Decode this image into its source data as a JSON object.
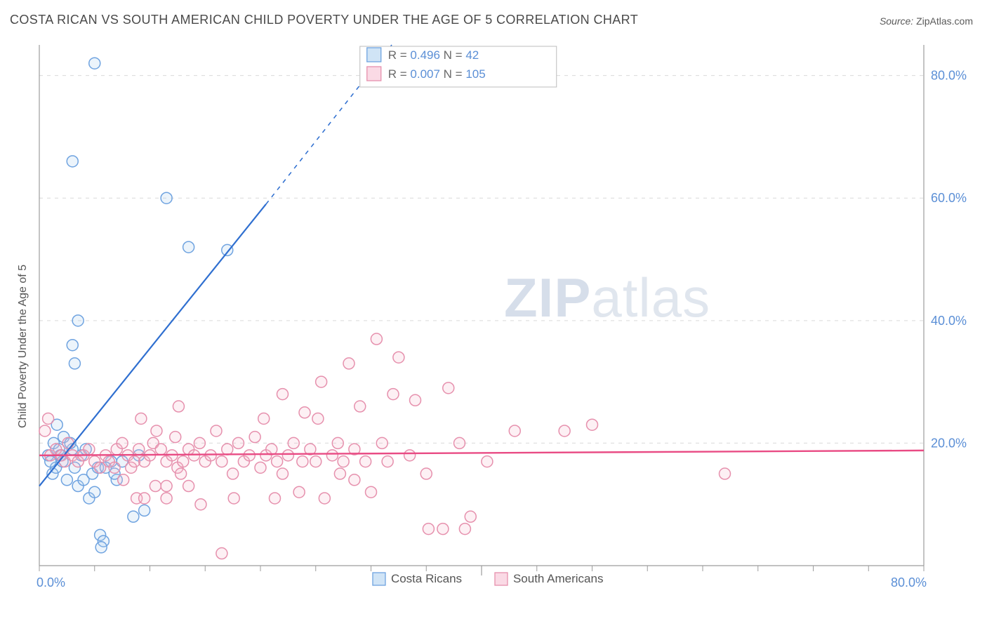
{
  "title": "COSTA RICAN VS SOUTH AMERICAN CHILD POVERTY UNDER THE AGE OF 5 CORRELATION CHART",
  "source_label": "Source:",
  "source_value": "ZipAtlas.com",
  "ylabel": "Child Poverty Under the Age of 5",
  "watermark_bold": "ZIP",
  "watermark_rest": "atlas",
  "chart": {
    "type": "scatter",
    "background_color": "#ffffff",
    "grid_color": "#d9d9d9",
    "axis_color": "#9c9c9c",
    "tick_color": "#9c9c9c",
    "ticklabel_color": "#5b8fd6",
    "xlim": [
      0,
      80
    ],
    "ylim": [
      0,
      85
    ],
    "xticks_major": [
      0,
      40,
      80
    ],
    "yticks_major": [
      20,
      40,
      60,
      80
    ],
    "xtick_labels": {
      "0": "0.0%",
      "80": "80.0%"
    },
    "ytick_labels": {
      "20": "20.0%",
      "40": "40.0%",
      "60": "60.0%",
      "80": "80.0%"
    },
    "marker_radius": 8,
    "marker_stroke_width": 1.5,
    "marker_fill_opacity": 0.22,
    "series": [
      {
        "name": "Costa Ricans",
        "color_stroke": "#6fa3e0",
        "color_fill": "#a9cdee",
        "trend": {
          "x1": 0,
          "y1": 13,
          "x2": 20.5,
          "y2": 59,
          "dash_x2": 38,
          "dash_y2": 99,
          "color": "#2f6fd0",
          "width": 2.2
        },
        "R": "0.496",
        "N": "42",
        "points": [
          [
            0.8,
            18
          ],
          [
            1.2,
            15
          ],
          [
            1.3,
            20
          ],
          [
            1.5,
            16
          ],
          [
            2,
            18
          ],
          [
            2.2,
            21
          ],
          [
            1.0,
            17
          ],
          [
            2.5,
            14
          ],
          [
            3,
            19
          ],
          [
            3.2,
            16
          ],
          [
            3.5,
            13
          ],
          [
            3.8,
            18
          ],
          [
            4.0,
            14
          ],
          [
            4.5,
            11
          ],
          [
            4.8,
            15
          ],
          [
            5.0,
            12
          ],
          [
            5.3,
            16
          ],
          [
            5.5,
            5
          ],
          [
            5.8,
            4
          ],
          [
            5.6,
            3
          ],
          [
            7.5,
            17
          ],
          [
            8.5,
            8
          ],
          [
            9.0,
            18
          ],
          [
            9.5,
            9
          ],
          [
            3.0,
            36
          ],
          [
            3.2,
            33
          ],
          [
            3.5,
            40
          ],
          [
            5.0,
            82
          ],
          [
            3.0,
            66
          ],
          [
            11.5,
            60
          ],
          [
            13.5,
            52
          ],
          [
            17.0,
            51.5
          ],
          [
            6.5,
            17
          ],
          [
            7.0,
            14
          ],
          [
            2.8,
            20
          ],
          [
            1.8,
            19
          ],
          [
            2.1,
            17
          ],
          [
            4.2,
            19
          ],
          [
            6.0,
            16
          ],
          [
            6.8,
            15
          ],
          [
            1.6,
            23
          ],
          [
            1.9,
            18
          ]
        ]
      },
      {
        "name": "South Americans",
        "color_stroke": "#e690ad",
        "color_fill": "#f5bccf",
        "trend": {
          "x1": 0,
          "y1": 18.0,
          "x2": 80,
          "y2": 18.8,
          "color": "#e94b84",
          "width": 2.4
        },
        "R": "0.007",
        "N": "105",
        "points": [
          [
            0.5,
            22
          ],
          [
            0.8,
            24
          ],
          [
            1.0,
            18
          ],
          [
            1.5,
            19
          ],
          [
            2.0,
            18
          ],
          [
            2.3,
            17
          ],
          [
            2.6,
            20
          ],
          [
            3.0,
            18
          ],
          [
            3.5,
            17
          ],
          [
            4.0,
            18
          ],
          [
            4.5,
            19
          ],
          [
            5.0,
            17
          ],
          [
            5.5,
            16
          ],
          [
            6.0,
            18
          ],
          [
            6.3,
            17
          ],
          [
            6.8,
            16
          ],
          [
            7.0,
            19
          ],
          [
            7.5,
            20
          ],
          [
            7.6,
            14
          ],
          [
            8.0,
            18
          ],
          [
            8.3,
            16
          ],
          [
            8.6,
            17
          ],
          [
            8.8,
            11
          ],
          [
            9.0,
            19
          ],
          [
            9.5,
            17
          ],
          [
            9.5,
            11
          ],
          [
            10.0,
            18
          ],
          [
            10.3,
            20
          ],
          [
            10.5,
            13
          ],
          [
            10.6,
            22
          ],
          [
            11.0,
            19
          ],
          [
            11.5,
            17
          ],
          [
            11.5,
            13
          ],
          [
            11.5,
            11
          ],
          [
            12.0,
            18
          ],
          [
            12.3,
            21
          ],
          [
            12.5,
            16
          ],
          [
            12.6,
            26
          ],
          [
            13.0,
            17
          ],
          [
            13.5,
            19
          ],
          [
            13.5,
            13
          ],
          [
            14.0,
            18
          ],
          [
            14.5,
            20
          ],
          [
            14.6,
            10
          ],
          [
            15.0,
            17
          ],
          [
            15.5,
            18
          ],
          [
            16.0,
            22
          ],
          [
            16.5,
            17
          ],
          [
            16.5,
            2
          ],
          [
            17.0,
            19
          ],
          [
            17.5,
            15
          ],
          [
            17.6,
            11
          ],
          [
            18.0,
            20
          ],
          [
            18.5,
            17
          ],
          [
            19.0,
            18
          ],
          [
            19.5,
            21
          ],
          [
            20.0,
            16
          ],
          [
            20.3,
            24
          ],
          [
            20.5,
            18
          ],
          [
            21.0,
            19
          ],
          [
            21.3,
            11
          ],
          [
            21.5,
            17
          ],
          [
            22.0,
            15
          ],
          [
            22.0,
            28
          ],
          [
            22.5,
            18
          ],
          [
            23.0,
            20
          ],
          [
            23.5,
            12
          ],
          [
            23.8,
            17
          ],
          [
            24.0,
            25
          ],
          [
            24.5,
            19
          ],
          [
            25.0,
            17
          ],
          [
            25.2,
            24
          ],
          [
            25.5,
            30
          ],
          [
            25.8,
            11
          ],
          [
            26.5,
            18
          ],
          [
            27.0,
            20
          ],
          [
            27.2,
            15
          ],
          [
            27.5,
            17
          ],
          [
            28.0,
            33
          ],
          [
            28.5,
            14
          ],
          [
            28.5,
            19
          ],
          [
            29.0,
            26
          ],
          [
            29.5,
            17
          ],
          [
            30.0,
            12
          ],
          [
            30.5,
            37
          ],
          [
            31.0,
            20
          ],
          [
            31.5,
            17
          ],
          [
            32.0,
            28
          ],
          [
            32.5,
            34
          ],
          [
            33.5,
            18
          ],
          [
            34.0,
            27
          ],
          [
            35.0,
            15
          ],
          [
            35.2,
            6
          ],
          [
            36.5,
            6
          ],
          [
            37.0,
            29
          ],
          [
            38.0,
            20
          ],
          [
            38.5,
            6
          ],
          [
            39.0,
            8
          ],
          [
            40.5,
            17
          ],
          [
            43.0,
            22
          ],
          [
            47.5,
            22
          ],
          [
            50.0,
            23
          ],
          [
            62.0,
            15
          ],
          [
            9.2,
            24
          ],
          [
            12.8,
            15
          ]
        ]
      }
    ],
    "stats_legend": {
      "bg": "#ffffff",
      "border": "#bcbcbc",
      "label_R": "R  =",
      "label_N": "N  =",
      "value_color": "#5b8fd6",
      "label_color": "#6a6a6a"
    },
    "bottom_legend": {
      "box_size": 18,
      "label_color": "#555555"
    }
  }
}
